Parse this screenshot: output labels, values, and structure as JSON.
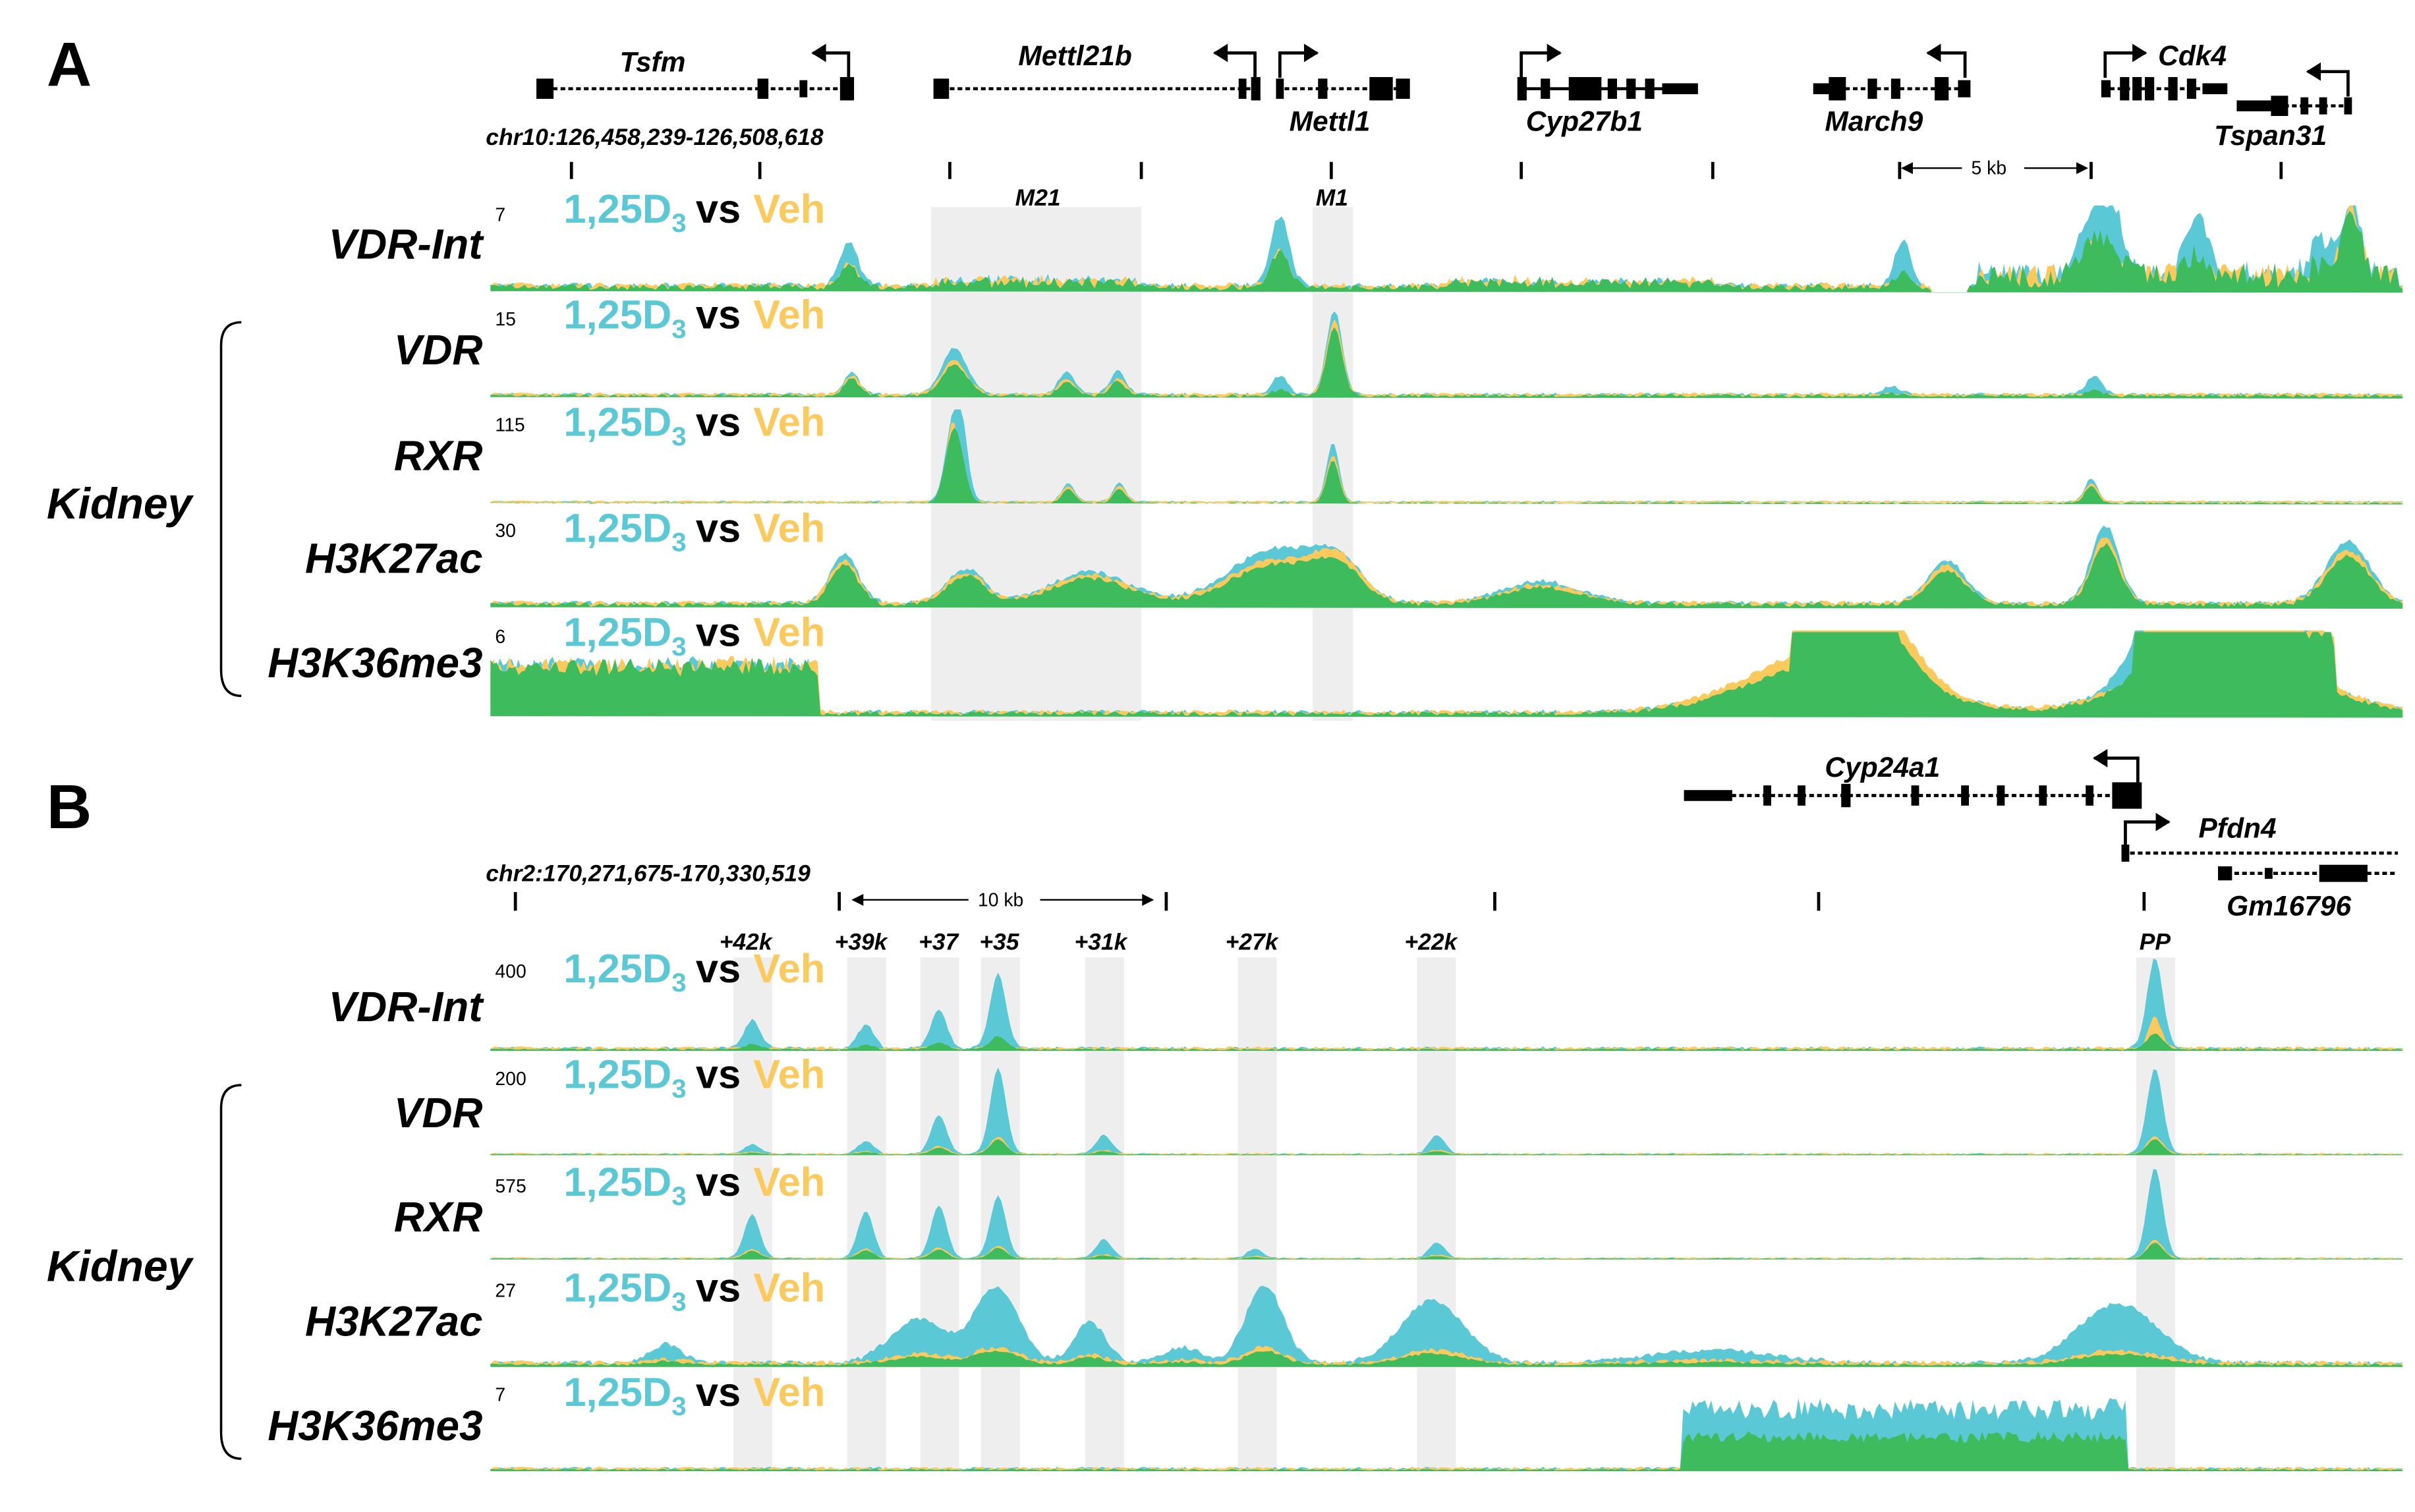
{
  "colors": {
    "treated": "#5bc8d6",
    "vehicle": "#fcc95c",
    "overlap": "#3dbb5d",
    "highlight": "#eeeeee"
  },
  "panels": [
    {
      "label": "A",
      "coordinates": "chr10:126,458,239-126,508,618",
      "scale_label": "5 kb",
      "genes": [
        {
          "name": "Tsfm"
        },
        {
          "name": "Mettl21b"
        },
        {
          "name": "Mettl1"
        },
        {
          "name": "Cyp27b1"
        },
        {
          "name": "March9"
        },
        {
          "name": "Cdk4"
        },
        {
          "name": "Tspan31"
        }
      ],
      "regions": [
        {
          "label": "M21"
        },
        {
          "label": "M1"
        }
      ],
      "group_label": "Kidney",
      "tracks": [
        {
          "name": "VDR-Int",
          "max": "7",
          "treated": "1,25D",
          "subscript": "3",
          "vs": "vs",
          "vehicle": "Veh"
        },
        {
          "name": "VDR",
          "max": "15",
          "treated": "1,25D",
          "subscript": "3",
          "vs": "vs",
          "vehicle": "Veh"
        },
        {
          "name": "RXR",
          "max": "115",
          "treated": "1,25D",
          "subscript": "3",
          "vs": "vs",
          "vehicle": "Veh"
        },
        {
          "name": "H3K27ac",
          "max": "30",
          "treated": "1,25D",
          "subscript": "3",
          "vs": "vs",
          "vehicle": "Veh"
        },
        {
          "name": "H3K36me3",
          "max": "6",
          "treated": "1,25D",
          "subscript": "3",
          "vs": "vs",
          "vehicle": "Veh"
        }
      ]
    },
    {
      "label": "B",
      "coordinates": "chr2:170,271,675-170,330,519",
      "scale_label": "10 kb",
      "genes": [
        {
          "name": "Cyp24a1"
        },
        {
          "name": "Pfdn4"
        },
        {
          "name": "Gm16796"
        }
      ],
      "regions": [
        {
          "label": "+42k"
        },
        {
          "label": "+39k"
        },
        {
          "label": "+37"
        },
        {
          "label": "+35"
        },
        {
          "label": "+31k"
        },
        {
          "label": "+27k"
        },
        {
          "label": "+22k"
        },
        {
          "label": "PP"
        }
      ],
      "group_label": "Kidney",
      "tracks": [
        {
          "name": "VDR-Int",
          "max": "400",
          "treated": "1,25D",
          "subscript": "3",
          "vs": "vs",
          "vehicle": "Veh"
        },
        {
          "name": "VDR",
          "max": "200",
          "treated": "1,25D",
          "subscript": "3",
          "vs": "vs",
          "vehicle": "Veh"
        },
        {
          "name": "RXR",
          "max": "575",
          "treated": "1,25D",
          "subscript": "3",
          "vs": "vs",
          "vehicle": "Veh"
        },
        {
          "name": "H3K27ac",
          "max": "27",
          "treated": "1,25D",
          "subscript": "3",
          "vs": "vs",
          "vehicle": "Veh"
        },
        {
          "name": "H3K36me3",
          "max": "7",
          "treated": "1,25D",
          "subscript": "3",
          "vs": "vs",
          "vehicle": "Veh"
        }
      ]
    }
  ]
}
